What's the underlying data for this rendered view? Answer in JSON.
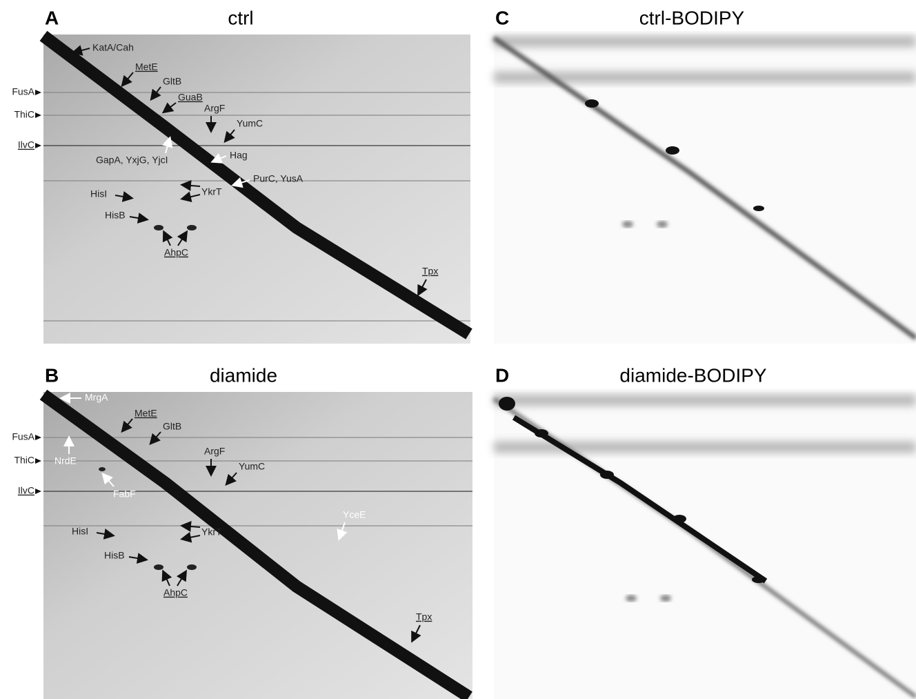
{
  "panels": [
    {
      "letter": "A",
      "title": "ctrl",
      "labels": [
        "KatA/Cah",
        "MetE",
        "GltB",
        "GuaB",
        "ArgF",
        "YumC",
        "GapA, YxjG, YjcI",
        "Hag",
        "PurC, YusA",
        "HisI",
        "YkrT",
        "HisB",
        "AhpC",
        "Tpx"
      ],
      "side_labels": [
        "FusA",
        "ThiC",
        "IlvC"
      ]
    },
    {
      "letter": "B",
      "title": "diamide",
      "labels": [
        "MrgA",
        "MetE",
        "GltB",
        "NrdE",
        "ArgF",
        "YumC",
        "FabF",
        "YceE",
        "HisI",
        "YkrT",
        "HisB",
        "AhpC",
        "Tpx"
      ],
      "side_labels": [
        "FusA",
        "ThiC",
        "IlvC"
      ]
    },
    {
      "letter": "C",
      "title": "ctrl-BODIPY"
    },
    {
      "letter": "D",
      "title": "diamide-BODIPY"
    }
  ]
}
